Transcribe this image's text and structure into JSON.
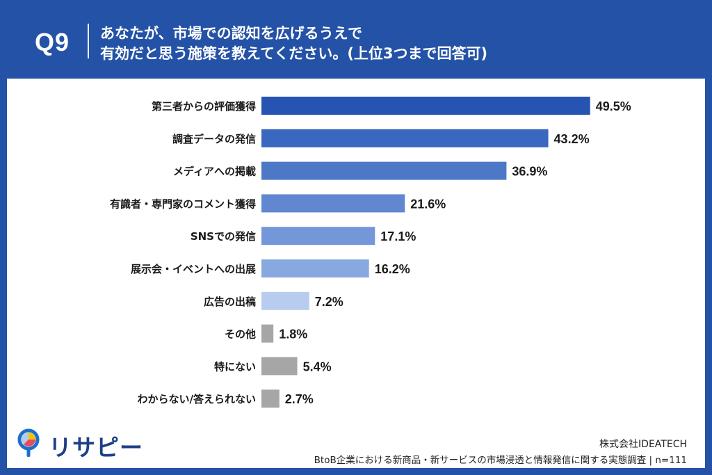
{
  "header": {
    "question_number": "Q9",
    "question_line1": "あなたが、市場での認知を広げるうえで",
    "question_line2": "有効だと思う施策を教えてください。(上位3つまで回答可)"
  },
  "chart_data": {
    "type": "bar",
    "orientation": "horizontal",
    "unit": "%",
    "categories": [
      "第三者からの評価獲得",
      "調査データの発信",
      "メディアへの掲載",
      "有識者・専門家のコメント獲得",
      "SNSでの発信",
      "展示会・イベントへの出展",
      "広告の出稿",
      "その他",
      "特にない",
      "わからない/答えられない"
    ],
    "values": [
      49.5,
      43.2,
      36.9,
      21.6,
      17.1,
      16.2,
      7.2,
      1.8,
      5.4,
      2.7
    ],
    "value_labels": [
      "49.5%",
      "43.2%",
      "36.9%",
      "21.6%",
      "17.1%",
      "16.2%",
      "7.2%",
      "1.8%",
      "5.4%",
      "2.7%"
    ],
    "colors": [
      "#2554b3",
      "#3a67bf",
      "#4d78c6",
      "#6187d0",
      "#7397d8",
      "#88a9e0",
      "#b7ccee",
      "#a6a6a6",
      "#a6a6a6",
      "#a6a6a6"
    ],
    "xlim": [
      0,
      100
    ],
    "grid": false,
    "legend": "none"
  },
  "logo": {
    "name": "リサピー"
  },
  "footer": {
    "company": "株式会社IDEATECH",
    "survey": "BtoB企業における新商品・新サービスの市場浸透と情報発信に関する実態調査 | n=111"
  }
}
